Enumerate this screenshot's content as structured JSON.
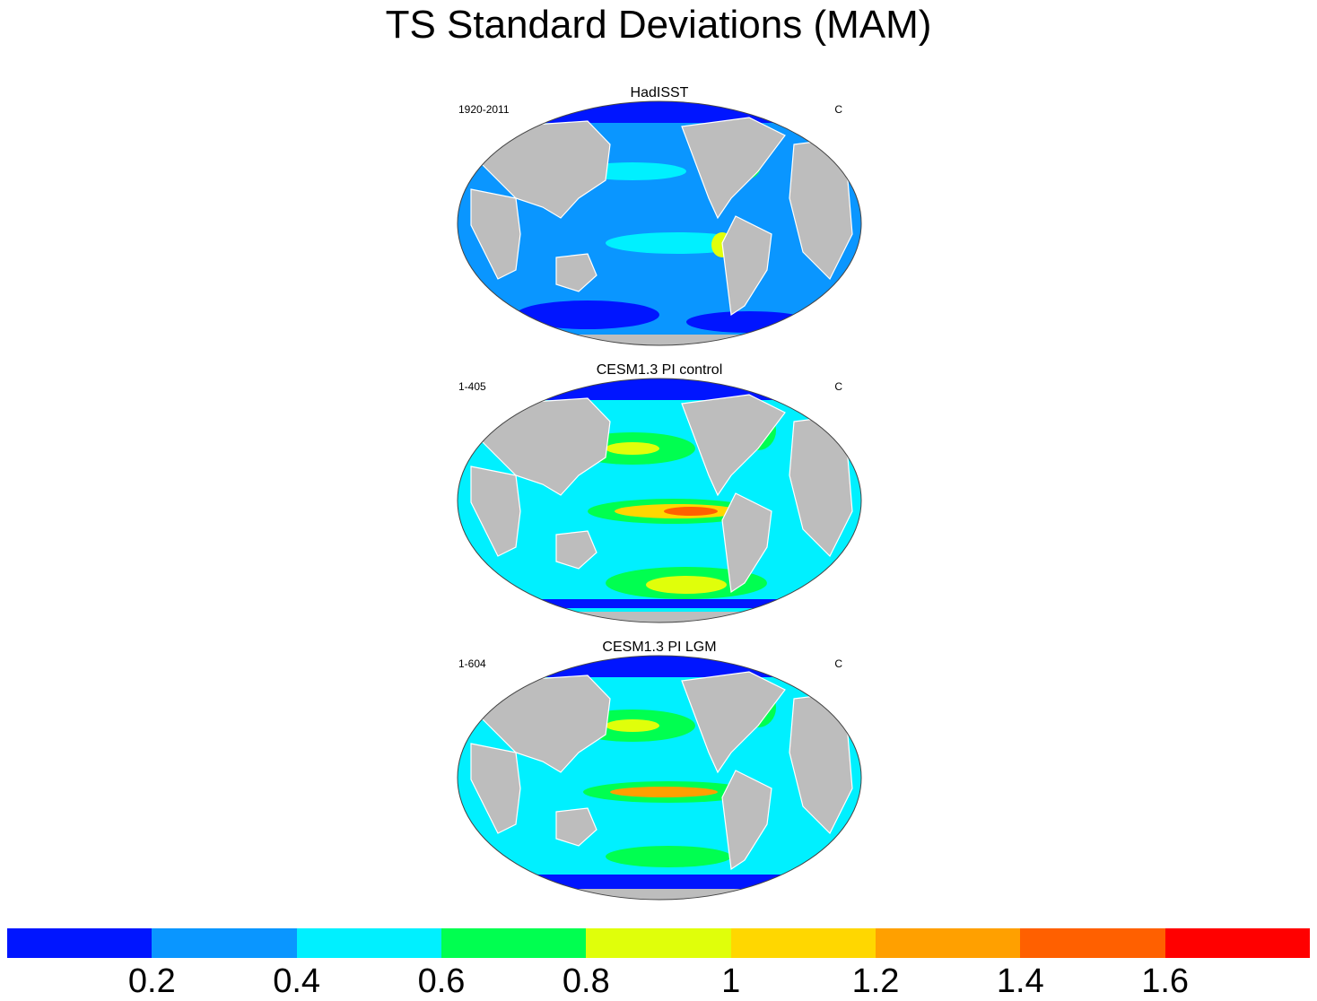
{
  "title": "TS Standard Deviations (MAM)",
  "panels": [
    {
      "title": "HadISST",
      "left_label": "1920-2011",
      "right_label": "C",
      "variant": "obs"
    },
    {
      "title": "CESM1.3 PI control",
      "left_label": "1-405",
      "right_label": "C",
      "variant": "control"
    },
    {
      "title": "CESM1.3 PI LGM",
      "left_label": "1-604",
      "right_label": "C",
      "variant": "lgm"
    }
  ],
  "colorbar": {
    "colors": [
      "#0015ff",
      "#0a96ff",
      "#00f0ff",
      "#00ff50",
      "#e0ff0a",
      "#ffd700",
      "#ffa000",
      "#ff6000",
      "#ff0000"
    ],
    "labels": [
      "0.2",
      "0.4",
      "0.6",
      "0.8",
      "1",
      "1.2",
      "1.4",
      "1.6"
    ]
  },
  "colors": {
    "land": "#bdbdbd",
    "coast": "#ffffff",
    "outline": "#444444"
  }
}
